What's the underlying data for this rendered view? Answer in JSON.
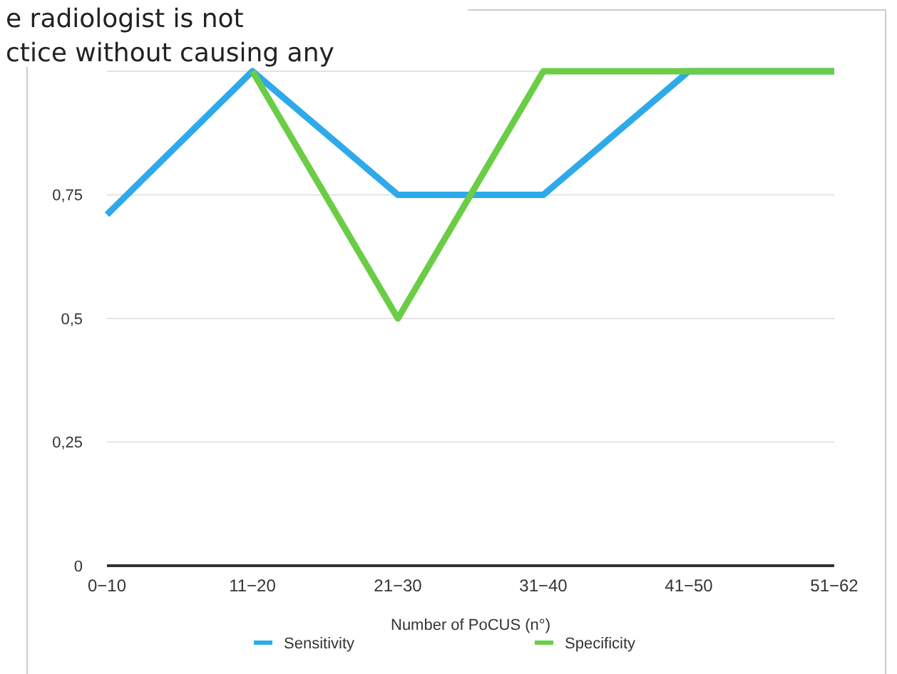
{
  "chart_data": {
    "type": "line",
    "categories": [
      "0−10",
      "11−20",
      "21−30",
      "31−40",
      "41−50",
      "51−62"
    ],
    "series": [
      {
        "name": "Sensitivity",
        "color": "#2eaaeb",
        "values": [
          0.71,
          1,
          0.75,
          0.75,
          1,
          1
        ]
      },
      {
        "name": "Specificity",
        "color": "#6acd45",
        "values": [
          null,
          1,
          0.5,
          1,
          1,
          1
        ]
      }
    ],
    "ylim": [
      0,
      1
    ],
    "yticks": [
      0,
      {
        "value": 0.25,
        "label": "0,25"
      },
      {
        "value": 0.5,
        "label": "0,5"
      },
      {
        "value": 0.75,
        "label": "0,75"
      },
      {
        "value": 1,
        "label": null
      }
    ],
    "xlabel": "Number of PoCUS (n°)",
    "grid": "y",
    "legend": "bottom",
    "marker": "none",
    "line_style": "solid",
    "annotations": [
      "e radiologist is not",
      "ctice without causing any"
    ]
  }
}
